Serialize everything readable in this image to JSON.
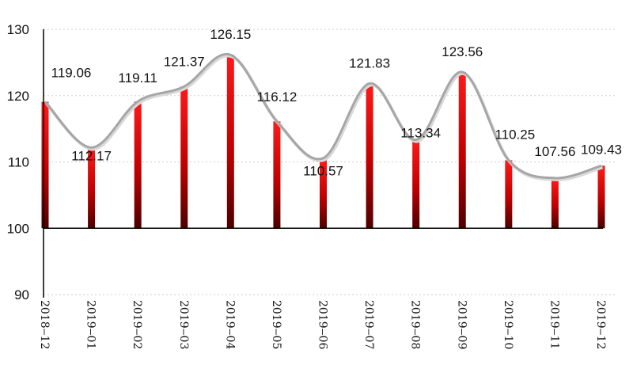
{
  "chart_data": {
    "type": "bar",
    "title": "",
    "xlabel": "",
    "ylabel": "",
    "categories": [
      "2018-12",
      "2019-01",
      "2019-02",
      "2019-03",
      "2019-04",
      "2019-05",
      "2019-06",
      "2019-07",
      "2019-08",
      "2019-09",
      "2019-10",
      "2019-11",
      "2019-12"
    ],
    "category_labels": [
      "2018‒12",
      "2019‒01",
      "2019‒02",
      "2019‒03",
      "2019‒04",
      "2019‒05",
      "2019‒06",
      "2019‒07",
      "2019‒08",
      "2019‒09",
      "2019‒10",
      "2019‒11",
      "2019‒12"
    ],
    "values": [
      119.06,
      112.17,
      119.11,
      121.37,
      126.15,
      116.12,
      110.57,
      121.83,
      113.34,
      123.56,
      110.25,
      107.56,
      109.43
    ],
    "value_labels": [
      "119.06",
      "112.17",
      "119.11",
      "121.37",
      "126.15",
      "116.12",
      "110.57",
      "121.83",
      "113.34",
      "123.56",
      "110.25",
      "107.56",
      "109.43"
    ],
    "bar_baseline": 100,
    "ylim": [
      90,
      130
    ],
    "yticks": [
      90,
      100,
      110,
      120,
      130
    ],
    "overlay": "smoothed-line",
    "grid": "dotted-horizontal",
    "legend": "none",
    "colors": {
      "bar_top": "#ff1a1a",
      "bar_bottom": "#4d0000",
      "line": "#a6a6a6",
      "grid": "#cfcfcf",
      "axis": "#000000"
    }
  }
}
